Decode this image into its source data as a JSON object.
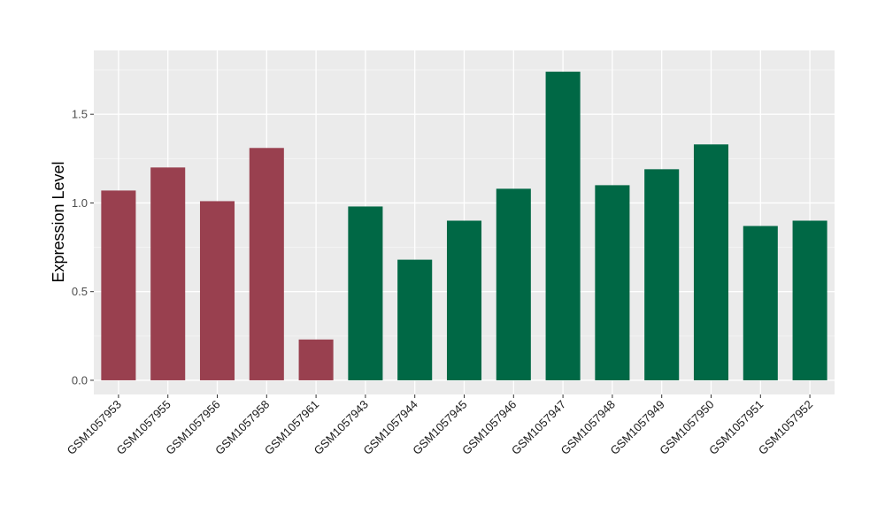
{
  "chart_data": {
    "type": "bar",
    "title": "",
    "xlabel": "",
    "ylabel": "Expression Level",
    "ylim": [
      -0.08,
      1.86
    ],
    "yticks": [
      0.0,
      0.5,
      1.0,
      1.5
    ],
    "ytick_labels": [
      "0.0",
      "0.5",
      "1.0",
      "1.5"
    ],
    "grid": true,
    "legend": "none",
    "categories": [
      "GSM1057953",
      "GSM1057955",
      "GSM1057956",
      "GSM1057958",
      "GSM1057961",
      "GSM1057943",
      "GSM1057944",
      "GSM1057945",
      "GSM1057946",
      "GSM1057947",
      "GSM1057948",
      "GSM1057949",
      "GSM1057950",
      "GSM1057951",
      "GSM1057952"
    ],
    "values": [
      1.07,
      1.2,
      1.01,
      1.31,
      0.23,
      0.98,
      0.68,
      0.9,
      1.08,
      1.74,
      1.1,
      1.19,
      1.33,
      0.87,
      0.9
    ],
    "groups": [
      0,
      0,
      0,
      0,
      0,
      1,
      1,
      1,
      1,
      1,
      1,
      1,
      1,
      1,
      1
    ],
    "colors": {
      "group_0": "#99404f",
      "group_1": "#006845",
      "panel_background": "#ebebeb",
      "grid_major": "#ffffff",
      "grid_minor": "#f4f4f4"
    }
  }
}
